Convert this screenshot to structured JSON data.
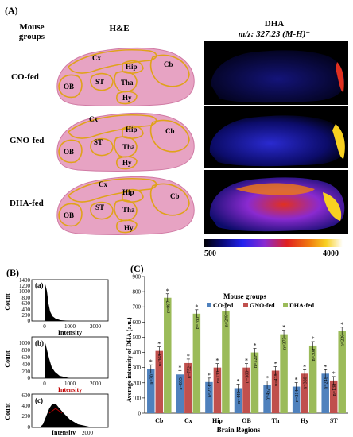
{
  "panel_A": {
    "label": "(A)",
    "groups_header": "Mouse groups",
    "he_header": "H&E",
    "dha_header": "DHA",
    "mz_header": "m/z: 327.23 (M-H)⁻",
    "rows": [
      "CO-fed",
      "GNO-fed",
      "DHA-fed"
    ],
    "regions": [
      "Cx",
      "Hip",
      "Cb",
      "OB",
      "ST",
      "Tha",
      "Hy"
    ],
    "colorbar_min": "500",
    "colorbar_max": "4000"
  },
  "panel_B": {
    "label": "(B)",
    "subpanels": [
      "(a)",
      "(b)",
      "(c)"
    ],
    "ylabel": "Count",
    "xlabel": "Intensity",
    "yticks_a": [
      "0",
      "200",
      "400",
      "600",
      "800",
      "1000",
      "1200",
      "1400"
    ],
    "yticks_b": [
      "0",
      "200",
      "400",
      "600",
      "800",
      "1000"
    ],
    "yticks_c": [
      "0",
      "200",
      "400",
      "600"
    ],
    "xticks": [
      "0",
      "1000",
      "2000"
    ]
  },
  "chart_data": {
    "type": "bar",
    "label": "(C)",
    "title": "Mouse groups",
    "xlabel": "Brain Regions",
    "ylabel": "Average intensity of DHA (a.u.)",
    "ylim": [
      0,
      900
    ],
    "yticks": [
      "0",
      "100",
      "200",
      "300",
      "400",
      "500",
      "600",
      "700",
      "800",
      "900"
    ],
    "legend_position": "top-right",
    "categories": [
      "Cb",
      "Cx",
      "Hip",
      "OB",
      "Th",
      "Hy",
      "ST"
    ],
    "series": [
      {
        "name": "CO-fed",
        "color": "#4f81bd",
        "values": [
          292,
          255,
          205,
          165,
          185,
          175,
          260
        ],
        "n_labels": [
          "n=301",
          "n=855",
          "n=273",
          "n=449",
          "n=452",
          "n=314",
          "n=248"
        ]
      },
      {
        "name": "GNO-fed",
        "color": "#c0504d",
        "values": [
          410,
          330,
          300,
          300,
          280,
          260,
          215
        ],
        "n_labels": [
          "n=368",
          "n=752",
          "n=133",
          "n=300",
          "n=428",
          "n=380",
          "n=138"
        ]
      },
      {
        "name": "DHA-fed",
        "color": "#9bbb59",
        "values": [
          760,
          655,
          670,
          400,
          520,
          445,
          540
        ],
        "n_labels": [
          "n=997",
          "n=785",
          "n=248",
          "n=520",
          "n=375",
          "n=308",
          "n=226"
        ]
      }
    ],
    "significance_marker": "*"
  }
}
